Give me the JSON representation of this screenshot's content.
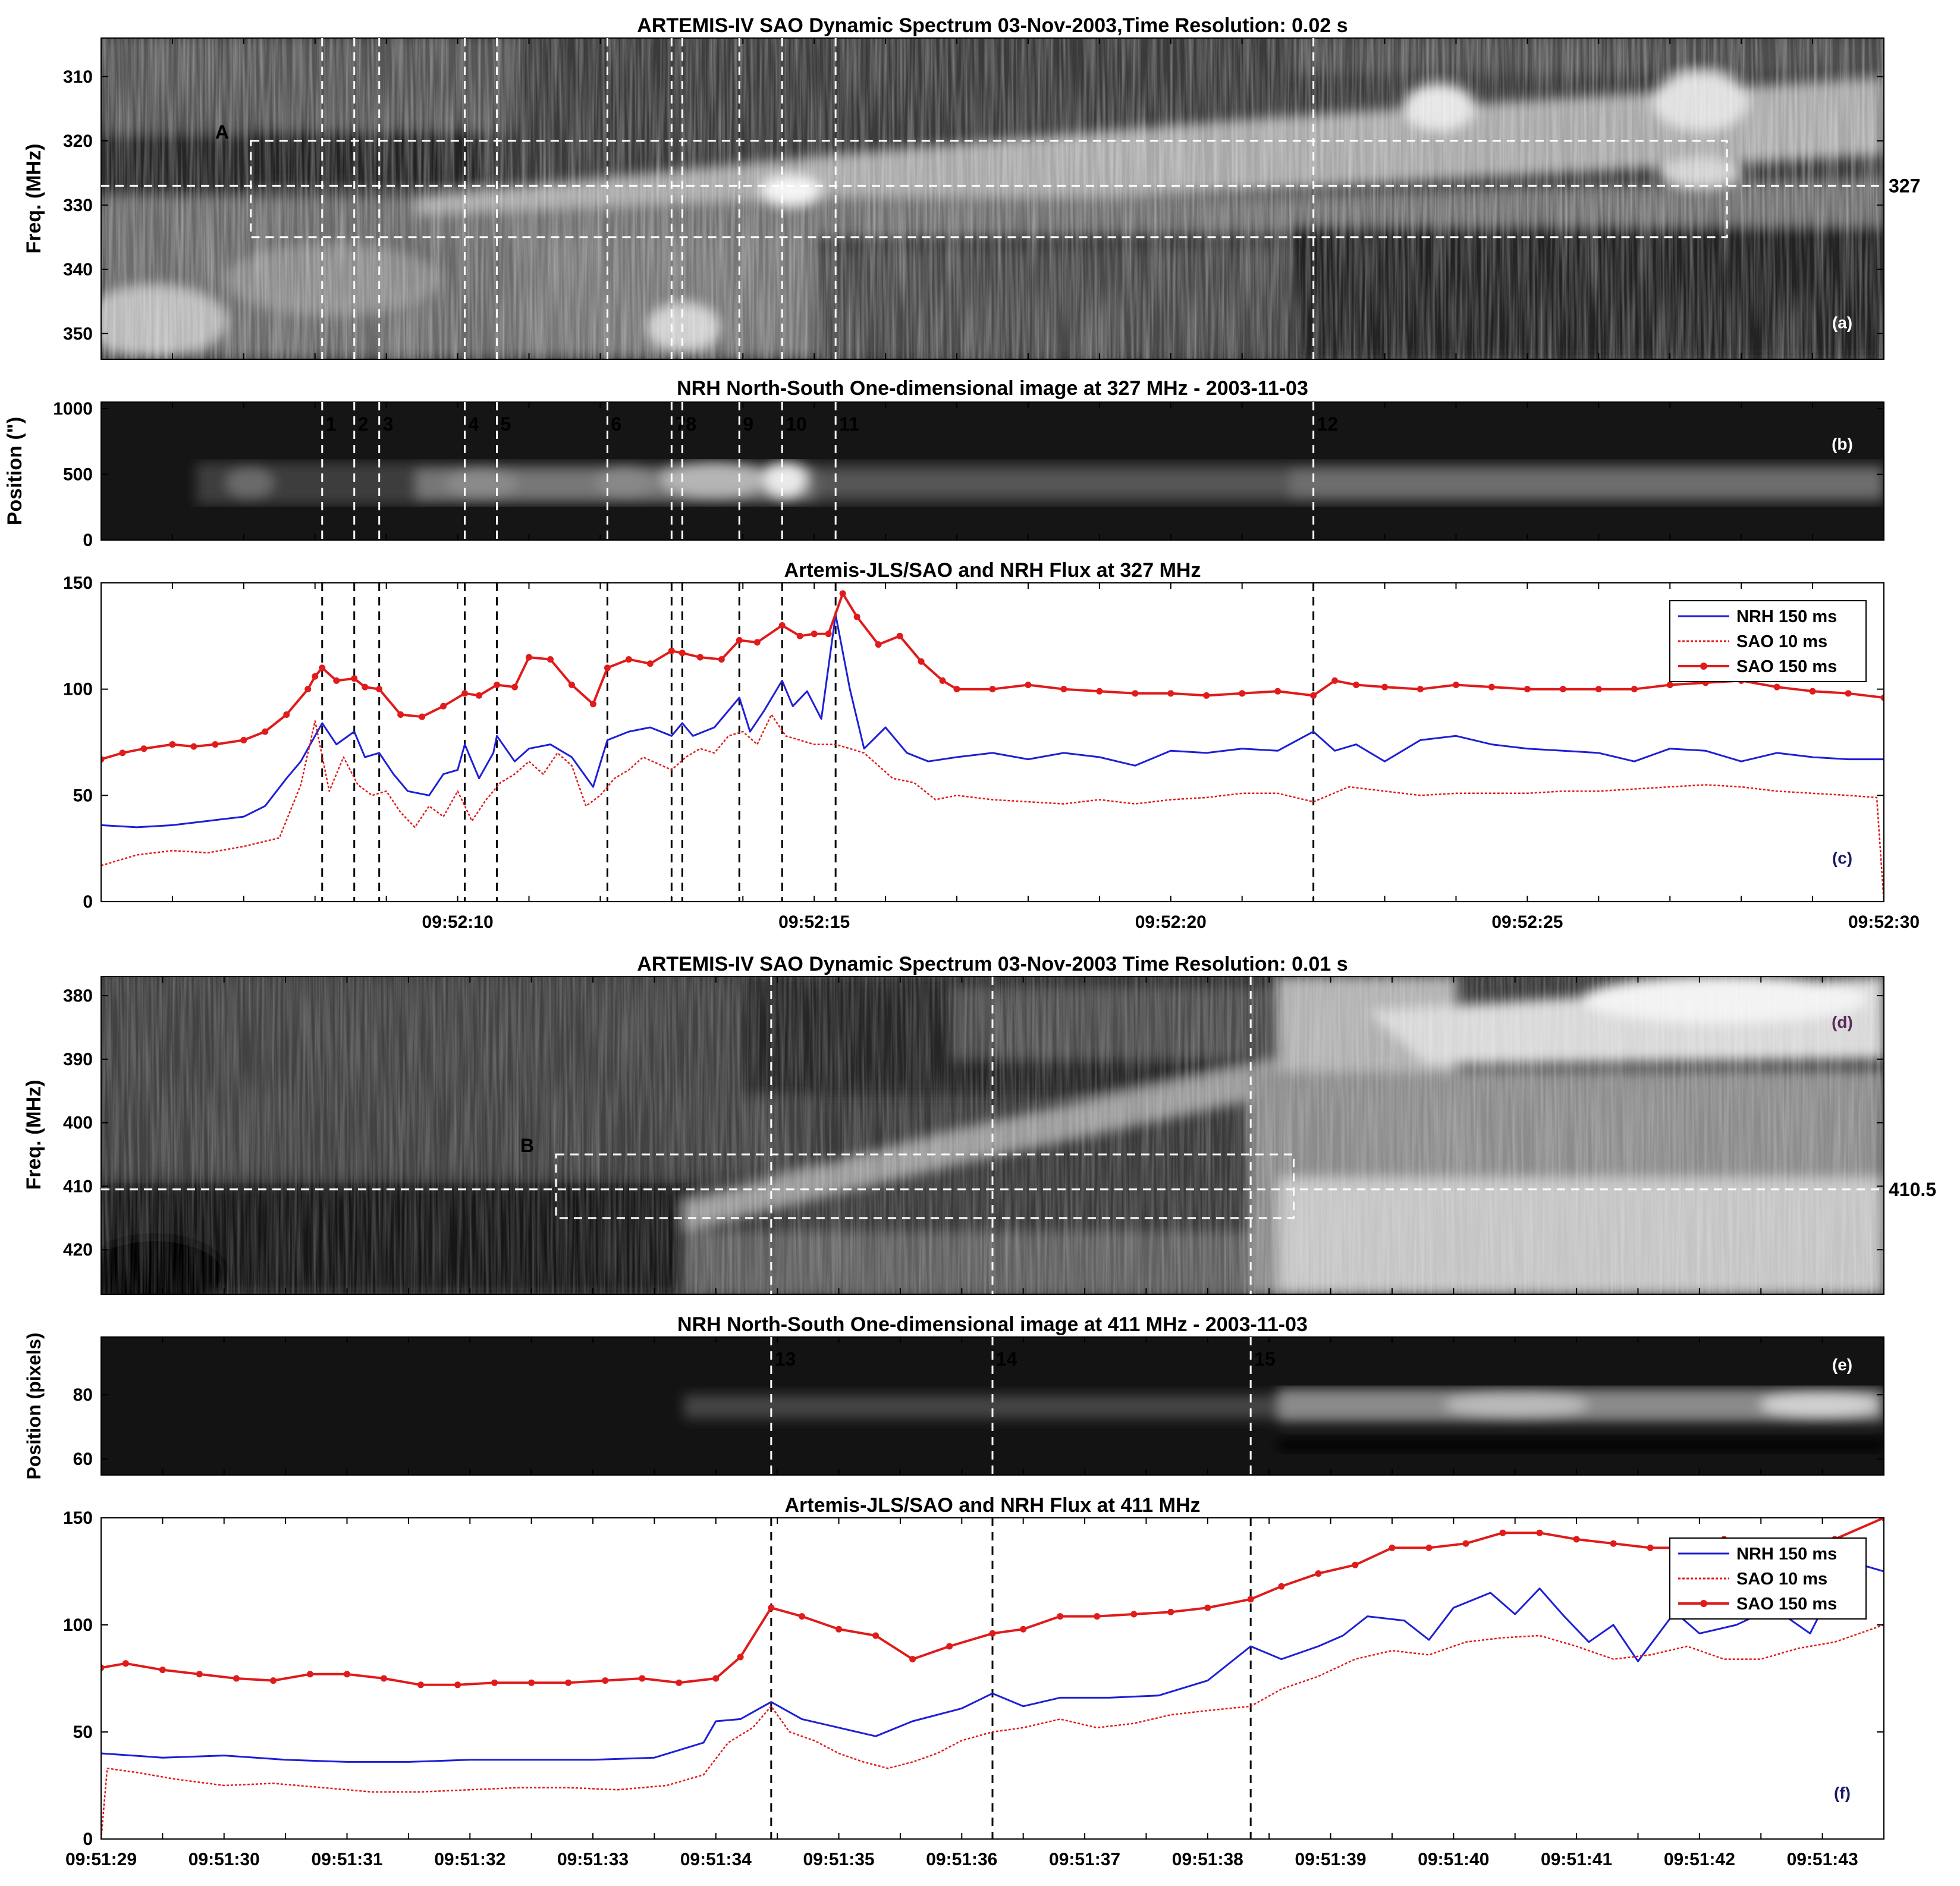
{
  "colors": {
    "nrh": "#1f1fd6",
    "sao_10ms": "#e01b1b",
    "sao_150ms": "#e01b1b",
    "marker_line": "#000000",
    "overlay_line": "#ffffff"
  },
  "panels": [
    {
      "id": "a",
      "type": "heatmap",
      "title": "ARTEMIS-IV  SAO Dynamic Spectrum 03-Nov-2003,Time Resolution: 0.02 s",
      "ylabel": "Freq. (MHz)",
      "ylim": [
        354,
        304
      ],
      "yticks": [
        310,
        320,
        330,
        340,
        350
      ],
      "xlim": [
        5,
        30
      ],
      "tag": "(a)",
      "box_label": "A",
      "hline_value": 327,
      "hline_label": "327",
      "box": {
        "t": [
          7.1,
          27.8
        ],
        "f": [
          320,
          335
        ]
      },
      "markers": [
        8.1,
        8.55,
        8.9,
        10.1,
        10.55,
        12.1,
        13.0,
        13.15,
        13.95,
        14.55,
        15.3,
        22.0
      ]
    },
    {
      "id": "b",
      "type": "heatmap",
      "title": "NRH North-South One-dimensional image at 327 MHz  -  2003-11-03",
      "ylabel": "Position (\")",
      "ylim": [
        0,
        1050
      ],
      "yticks": [
        0,
        500,
        1000
      ],
      "xlim": [
        5,
        30
      ],
      "tag": "(b)",
      "markers": [
        8.1,
        8.55,
        8.9,
        10.1,
        10.55,
        12.1,
        13.0,
        13.15,
        13.95,
        14.55,
        15.3,
        22.0
      ],
      "marker_labels": [
        "1",
        "2",
        "3",
        "4",
        "5",
        "6",
        "7",
        "8",
        "9",
        "10",
        "11",
        "12"
      ]
    },
    {
      "id": "f327",
      "type": "line",
      "title": "Artemis-JLS/SAO and NRH Flux at 327 MHz",
      "ylim": [
        0,
        150
      ],
      "yticks": [
        0,
        50,
        100,
        150
      ],
      "xlim": [
        5,
        30
      ],
      "tag": "(c)",
      "xticks": [
        10,
        15,
        20,
        25,
        30
      ],
      "xtick_labels": [
        "09:52:10",
        "09:52:15",
        "09:52:20",
        "09:52:25",
        "09:52:30"
      ],
      "markers": [
        8.1,
        8.55,
        8.9,
        10.1,
        10.55,
        12.1,
        13.0,
        13.15,
        13.95,
        14.55,
        15.3,
        22.0
      ],
      "legend": [
        "NRH 150 ms",
        "SAO 10 ms",
        "SAO 150 ms"
      ]
    },
    {
      "id": "d",
      "type": "heatmap",
      "title": "ARTEMIS-IV  SAO Dynamic Spectrum 03-Nov-2003 Time Resolution: 0.01 s",
      "ylabel": "Freq. (MHz)",
      "ylim": [
        427,
        377
      ],
      "yticks": [
        380,
        390,
        400,
        410,
        420
      ],
      "xlim": [
        29,
        43.5
      ],
      "tag": "(d)",
      "box_label": "B",
      "hline_value": 410.5,
      "hline_label": "410.5",
      "box": {
        "t": [
          32.7,
          38.7
        ],
        "f": [
          405,
          415
        ]
      },
      "markers": [
        34.45,
        36.25,
        38.35
      ]
    },
    {
      "id": "e",
      "type": "heatmap",
      "title": "NRH North-South One-dimensional image at 411 MHz  -  2003-11-03",
      "ylabel": "Position (pixels)",
      "ylim": [
        55,
        98
      ],
      "yticks": [
        60,
        80
      ],
      "xlim": [
        29,
        43.5
      ],
      "tag": "(e)",
      "markers": [
        34.45,
        36.25,
        38.35
      ],
      "marker_labels": [
        "13",
        "14",
        "15"
      ]
    },
    {
      "id": "f411",
      "type": "line",
      "title": "Artemis-JLS/SAO and NRH Flux at 411 MHz",
      "ylim": [
        0,
        150
      ],
      "yticks": [
        0,
        50,
        100,
        150
      ],
      "xlim": [
        29,
        43.5
      ],
      "tag": "(f)",
      "xticks": [
        29,
        30,
        31,
        32,
        33,
        34,
        35,
        36,
        37,
        38,
        39,
        40,
        41,
        42,
        43
      ],
      "xtick_labels": [
        "09:51:29",
        "09:51:30",
        "09:51:31",
        "09:51:32",
        "09:51:33",
        "09:51:34",
        "09:51:35",
        "09:51:36",
        "09:51:37",
        "09:51:38",
        "09:51:39",
        "09:51:40",
        "09:51:41",
        "09:51:42",
        "09:51:43"
      ],
      "markers": [
        34.45,
        36.25,
        38.35
      ],
      "legend": [
        "NRH 150 ms",
        "SAO 10 ms",
        "SAO 150 ms"
      ]
    }
  ],
  "chart_data": [
    {
      "type": "line",
      "title": "Artemis-JLS/SAO and NRH Flux at 327 MHz",
      "x_unit": "seconds after 09:52:00",
      "ylim": [
        0,
        150
      ],
      "series": [
        {
          "name": "NRH 150 ms",
          "x": [
            5.0,
            5.5,
            6.0,
            6.5,
            7.0,
            7.3,
            7.6,
            7.8,
            8.0,
            8.1,
            8.3,
            8.55,
            8.7,
            8.9,
            9.1,
            9.3,
            9.6,
            9.8,
            10.0,
            10.1,
            10.3,
            10.5,
            10.55,
            10.8,
            11.0,
            11.3,
            11.6,
            11.9,
            12.1,
            12.4,
            12.7,
            13.0,
            13.15,
            13.3,
            13.6,
            13.95,
            14.1,
            14.3,
            14.55,
            14.7,
            14.9,
            15.1,
            15.3,
            15.5,
            15.7,
            16.0,
            16.3,
            16.6,
            17.0,
            17.5,
            18.0,
            18.5,
            19.0,
            19.5,
            20.0,
            20.5,
            21.0,
            21.5,
            22.0,
            22.3,
            22.6,
            23.0,
            23.5,
            24.0,
            24.5,
            25.0,
            25.5,
            26.0,
            26.5,
            27.0,
            27.5,
            28.0,
            28.5,
            29.0,
            29.5,
            30.0
          ],
          "y": [
            36,
            35,
            36,
            38,
            40,
            45,
            58,
            66,
            78,
            84,
            74,
            80,
            68,
            70,
            60,
            52,
            50,
            60,
            62,
            74,
            58,
            70,
            78,
            66,
            72,
            74,
            68,
            54,
            76,
            80,
            82,
            78,
            84,
            78,
            82,
            96,
            80,
            90,
            104,
            92,
            99,
            86,
            135,
            100,
            72,
            82,
            70,
            66,
            68,
            70,
            67,
            70,
            68,
            64,
            71,
            70,
            72,
            71,
            80,
            71,
            74,
            66,
            76,
            78,
            74,
            72,
            71,
            70,
            66,
            72,
            71,
            66,
            70,
            68,
            67,
            67
          ]
        },
        {
          "name": "SAO 10 ms",
          "x": [
            5.0,
            5.5,
            6.0,
            6.5,
            7.0,
            7.5,
            7.8,
            8.0,
            8.2,
            8.4,
            8.6,
            8.8,
            9.0,
            9.2,
            9.4,
            9.6,
            9.8,
            10.0,
            10.2,
            10.4,
            10.6,
            10.8,
            11.0,
            11.2,
            11.4,
            11.6,
            11.8,
            12.0,
            12.2,
            12.4,
            12.6,
            12.8,
            13.0,
            13.2,
            13.4,
            13.6,
            13.8,
            14.0,
            14.2,
            14.4,
            14.6,
            14.8,
            15.0,
            15.3,
            15.5,
            15.7,
            15.9,
            16.1,
            16.4,
            16.7,
            17.0,
            17.5,
            18.0,
            18.5,
            19.0,
            19.5,
            20.0,
            20.5,
            21.0,
            21.5,
            22.0,
            22.5,
            23.0,
            23.5,
            24.0,
            24.5,
            25.0,
            25.5,
            26.0,
            26.5,
            27.0,
            27.5,
            28.0,
            28.5,
            29.0,
            29.5,
            29.9,
            30.0
          ],
          "y": [
            17,
            22,
            24,
            23,
            26,
            30,
            55,
            85,
            52,
            68,
            55,
            50,
            52,
            42,
            35,
            45,
            40,
            52,
            38,
            48,
            56,
            60,
            66,
            60,
            70,
            64,
            45,
            50,
            58,
            62,
            68,
            65,
            62,
            68,
            72,
            70,
            78,
            80,
            74,
            88,
            78,
            76,
            74,
            74,
            72,
            70,
            64,
            58,
            56,
            48,
            50,
            48,
            47,
            46,
            48,
            46,
            48,
            49,
            51,
            51,
            47,
            54,
            52,
            50,
            51,
            51,
            51,
            52,
            52,
            53,
            54,
            55,
            54,
            52,
            51,
            50,
            49,
            0
          ]
        },
        {
          "name": "SAO 150 ms",
          "x": [
            5.0,
            5.3,
            5.6,
            6.0,
            6.3,
            6.6,
            7.0,
            7.3,
            7.6,
            7.9,
            8.0,
            8.1,
            8.3,
            8.55,
            8.7,
            8.9,
            9.2,
            9.5,
            9.8,
            10.1,
            10.3,
            10.55,
            10.8,
            11.0,
            11.3,
            11.6,
            11.9,
            12.1,
            12.4,
            12.7,
            13.0,
            13.15,
            13.4,
            13.7,
            13.95,
            14.2,
            14.55,
            14.8,
            15.0,
            15.2,
            15.4,
            15.6,
            15.9,
            16.2,
            16.5,
            16.8,
            17.0,
            17.5,
            18.0,
            18.5,
            19.0,
            19.5,
            20.0,
            20.5,
            21.0,
            21.5,
            22.0,
            22.3,
            22.6,
            23.0,
            23.5,
            24.0,
            24.5,
            25.0,
            25.5,
            26.0,
            26.5,
            27.0,
            27.5,
            28.0,
            28.5,
            29.0,
            29.5,
            30.0
          ],
          "y": [
            67,
            70,
            72,
            74,
            73,
            74,
            76,
            80,
            88,
            100,
            106,
            110,
            104,
            105,
            101,
            100,
            88,
            87,
            92,
            98,
            97,
            102,
            101,
            115,
            114,
            102,
            93,
            110,
            114,
            112,
            118,
            117,
            115,
            114,
            123,
            122,
            130,
            125,
            126,
            126,
            145,
            134,
            121,
            125,
            113,
            104,
            100,
            100,
            102,
            100,
            99,
            98,
            98,
            97,
            98,
            99,
            97,
            104,
            102,
            101,
            100,
            102,
            101,
            100,
            100,
            100,
            100,
            102,
            103,
            104,
            101,
            99,
            98,
            96
          ]
        }
      ],
      "markers": [
        8.1,
        8.55,
        8.9,
        10.1,
        10.55,
        12.1,
        13.0,
        13.15,
        13.95,
        14.55,
        15.3,
        22.0
      ]
    },
    {
      "type": "line",
      "title": "Artemis-JLS/SAO and NRH Flux at 411 MHz",
      "x_unit": "seconds after 09:51:00",
      "ylim": [
        0,
        150
      ],
      "series": [
        {
          "name": "NRH 150 ms",
          "x": [
            29.0,
            29.5,
            30.0,
            30.5,
            31.0,
            31.5,
            32.0,
            32.5,
            33.0,
            33.5,
            33.9,
            34.0,
            34.2,
            34.45,
            34.7,
            35.0,
            35.3,
            35.6,
            36.0,
            36.25,
            36.5,
            36.8,
            37.2,
            37.6,
            38.0,
            38.35,
            38.6,
            38.9,
            39.1,
            39.3,
            39.6,
            39.8,
            40.0,
            40.3,
            40.5,
            40.7,
            40.9,
            41.1,
            41.3,
            41.5,
            41.8,
            42.0,
            42.3,
            42.6,
            42.9,
            43.2,
            43.5
          ],
          "y": [
            40,
            38,
            39,
            37,
            36,
            36,
            37,
            37,
            37,
            38,
            45,
            55,
            56,
            64,
            56,
            52,
            48,
            55,
            61,
            68,
            62,
            66,
            66,
            67,
            74,
            90,
            84,
            90,
            95,
            104,
            102,
            93,
            108,
            115,
            105,
            117,
            104,
            92,
            100,
            83,
            106,
            96,
            100,
            108,
            96,
            130,
            125
          ]
        },
        {
          "name": "SAO 10 ms",
          "x": [
            29.0,
            29.05,
            29.3,
            29.6,
            30.0,
            30.4,
            30.8,
            31.2,
            31.6,
            32.0,
            32.4,
            32.8,
            33.2,
            33.6,
            33.9,
            34.1,
            34.3,
            34.45,
            34.6,
            34.8,
            35.0,
            35.2,
            35.4,
            35.6,
            35.8,
            36.0,
            36.25,
            36.5,
            36.8,
            37.1,
            37.4,
            37.7,
            38.0,
            38.35,
            38.6,
            38.9,
            39.2,
            39.5,
            39.8,
            40.1,
            40.4,
            40.7,
            41.0,
            41.3,
            41.6,
            41.9,
            42.2,
            42.5,
            42.8,
            43.1,
            43.5
          ],
          "y": [
            0,
            33,
            31,
            28,
            25,
            26,
            24,
            22,
            22,
            23,
            24,
            24,
            23,
            25,
            30,
            45,
            52,
            62,
            50,
            46,
            40,
            36,
            33,
            36,
            40,
            46,
            50,
            52,
            56,
            52,
            54,
            58,
            60,
            62,
            70,
            76,
            84,
            88,
            86,
            92,
            94,
            95,
            90,
            84,
            86,
            90,
            84,
            84,
            89,
            92,
            100
          ]
        },
        {
          "name": "SAO 150 ms",
          "x": [
            29.0,
            29.2,
            29.5,
            29.8,
            30.1,
            30.4,
            30.7,
            31.0,
            31.3,
            31.6,
            31.9,
            32.2,
            32.5,
            32.8,
            33.1,
            33.4,
            33.7,
            34.0,
            34.2,
            34.45,
            34.7,
            35.0,
            35.3,
            35.6,
            35.9,
            36.25,
            36.5,
            36.8,
            37.1,
            37.4,
            37.7,
            38.0,
            38.35,
            38.6,
            38.9,
            39.2,
            39.5,
            39.8,
            40.1,
            40.4,
            40.7,
            41.0,
            41.3,
            41.6,
            41.9,
            42.2,
            42.5,
            42.8,
            43.1,
            43.5
          ],
          "y": [
            80,
            82,
            79,
            77,
            75,
            74,
            77,
            77,
            75,
            72,
            72,
            73,
            73,
            73,
            74,
            75,
            73,
            75,
            85,
            108,
            104,
            98,
            95,
            84,
            90,
            96,
            98,
            104,
            104,
            105,
            106,
            108,
            112,
            118,
            124,
            128,
            136,
            136,
            138,
            143,
            143,
            140,
            138,
            136,
            136,
            140,
            138,
            136,
            140,
            150
          ]
        }
      ],
      "markers": [
        34.45,
        36.25,
        38.35
      ]
    }
  ]
}
